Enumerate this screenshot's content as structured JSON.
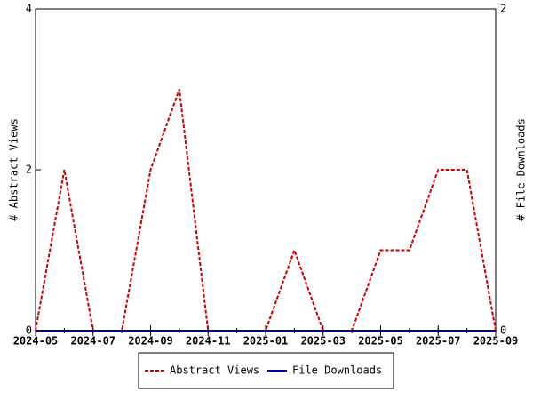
{
  "chart_data": {
    "type": "line",
    "x": [
      "2024-05",
      "2024-06",
      "2024-07",
      "2024-08",
      "2024-09",
      "2024-10",
      "2024-11",
      "2024-12",
      "2025-01",
      "2025-02",
      "2025-03",
      "2025-04",
      "2025-05",
      "2025-06",
      "2025-07",
      "2025-08",
      "2025-09"
    ],
    "series": [
      {
        "name": "Abstract Views",
        "color": "#cc0000",
        "dashed": true,
        "values": [
          0,
          2,
          0,
          0,
          2,
          3,
          0,
          0,
          0,
          1,
          0,
          0,
          1,
          1,
          2,
          2,
          0
        ]
      },
      {
        "name": "File Downloads",
        "color": "#0000a0",
        "dashed": false,
        "axis": "y2",
        "values": [
          0,
          0,
          0,
          0,
          0,
          0,
          0,
          0,
          0,
          0,
          0,
          0,
          0,
          0,
          0,
          0,
          0
        ]
      }
    ],
    "ylabel": "# Abstract Views",
    "y2label": "# File Downloads",
    "xlim": [
      "2024-05",
      "2025-09"
    ],
    "xticks": [
      "2024-05",
      "2024-07",
      "2024-09",
      "2024-11",
      "2025-01",
      "2025-03",
      "2025-05",
      "2025-07",
      "2025-09"
    ],
    "ylim": [
      0,
      4
    ],
    "yticks": [
      0,
      2,
      4
    ],
    "y2lim": [
      0,
      2
    ],
    "y2ticks": [
      0,
      2
    ],
    "legend": "bottom"
  }
}
